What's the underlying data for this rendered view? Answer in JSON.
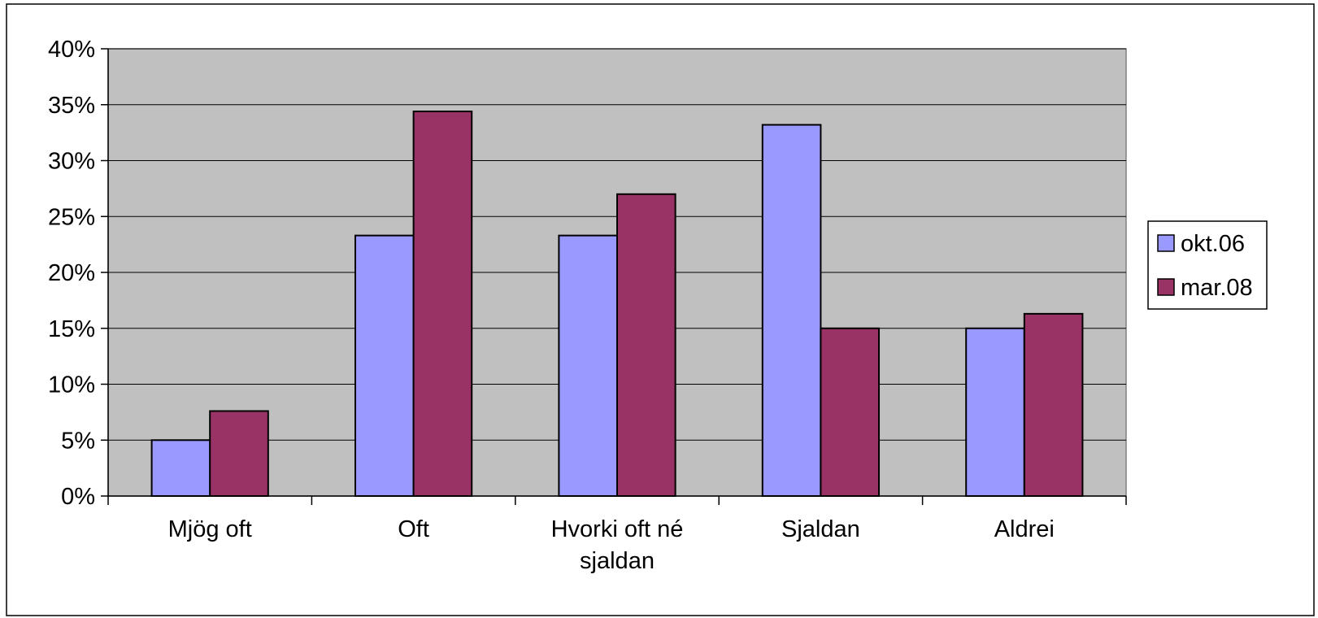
{
  "chart_data": {
    "type": "bar",
    "categories": [
      [
        "Mjög oft"
      ],
      [
        "Oft"
      ],
      [
        "Hvorki oft né",
        "sjaldan"
      ],
      [
        "Sjaldan"
      ],
      [
        "Aldrei"
      ]
    ],
    "series": [
      {
        "name": "okt.06",
        "color": "#9999ff",
        "values": [
          5,
          23.3,
          23.3,
          33.2,
          15
        ]
      },
      {
        "name": "mar.08",
        "color": "#993366",
        "values": [
          7.6,
          34.4,
          27,
          15,
          16.3
        ]
      }
    ],
    "ylim": [
      0,
      40
    ],
    "ytick_step": 5,
    "ytick_format": "percent",
    "grid": true,
    "plot_background": "#c0c0c0",
    "legend_position": "right"
  }
}
